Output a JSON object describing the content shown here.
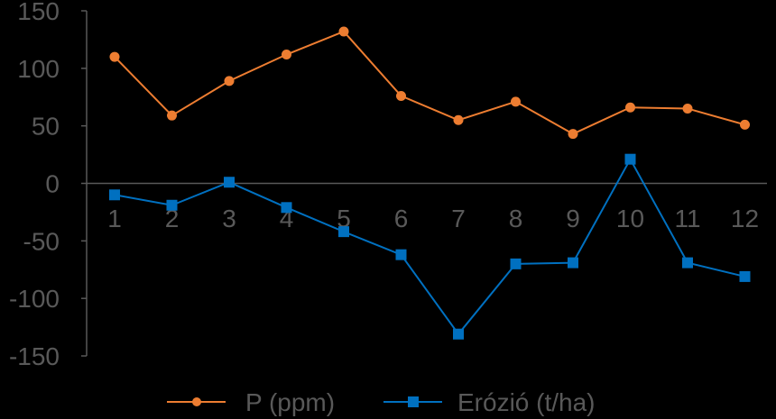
{
  "chart_data": {
    "type": "line",
    "categories": [
      "1",
      "2",
      "3",
      "4",
      "5",
      "6",
      "7",
      "8",
      "9",
      "10",
      "11",
      "12"
    ],
    "ylim": [
      -150,
      150
    ],
    "yticks": [
      "150",
      "100",
      "50",
      "0",
      "-50",
      "-100",
      "-150"
    ],
    "grid": false,
    "legend_position": "bottom",
    "series": [
      {
        "name": "P (ppm)",
        "color": "#ED7D31",
        "marker": "circle",
        "values": [
          110,
          59,
          89,
          112,
          132,
          76,
          55,
          71,
          43,
          66,
          65,
          51
        ]
      },
      {
        "name": "Erózió (t/ha)",
        "color": "#0070C0",
        "marker": "square",
        "values": [
          -10,
          -19,
          1,
          -21,
          -42,
          -62,
          -131,
          -70,
          -69,
          21,
          -69,
          -81
        ]
      }
    ]
  }
}
